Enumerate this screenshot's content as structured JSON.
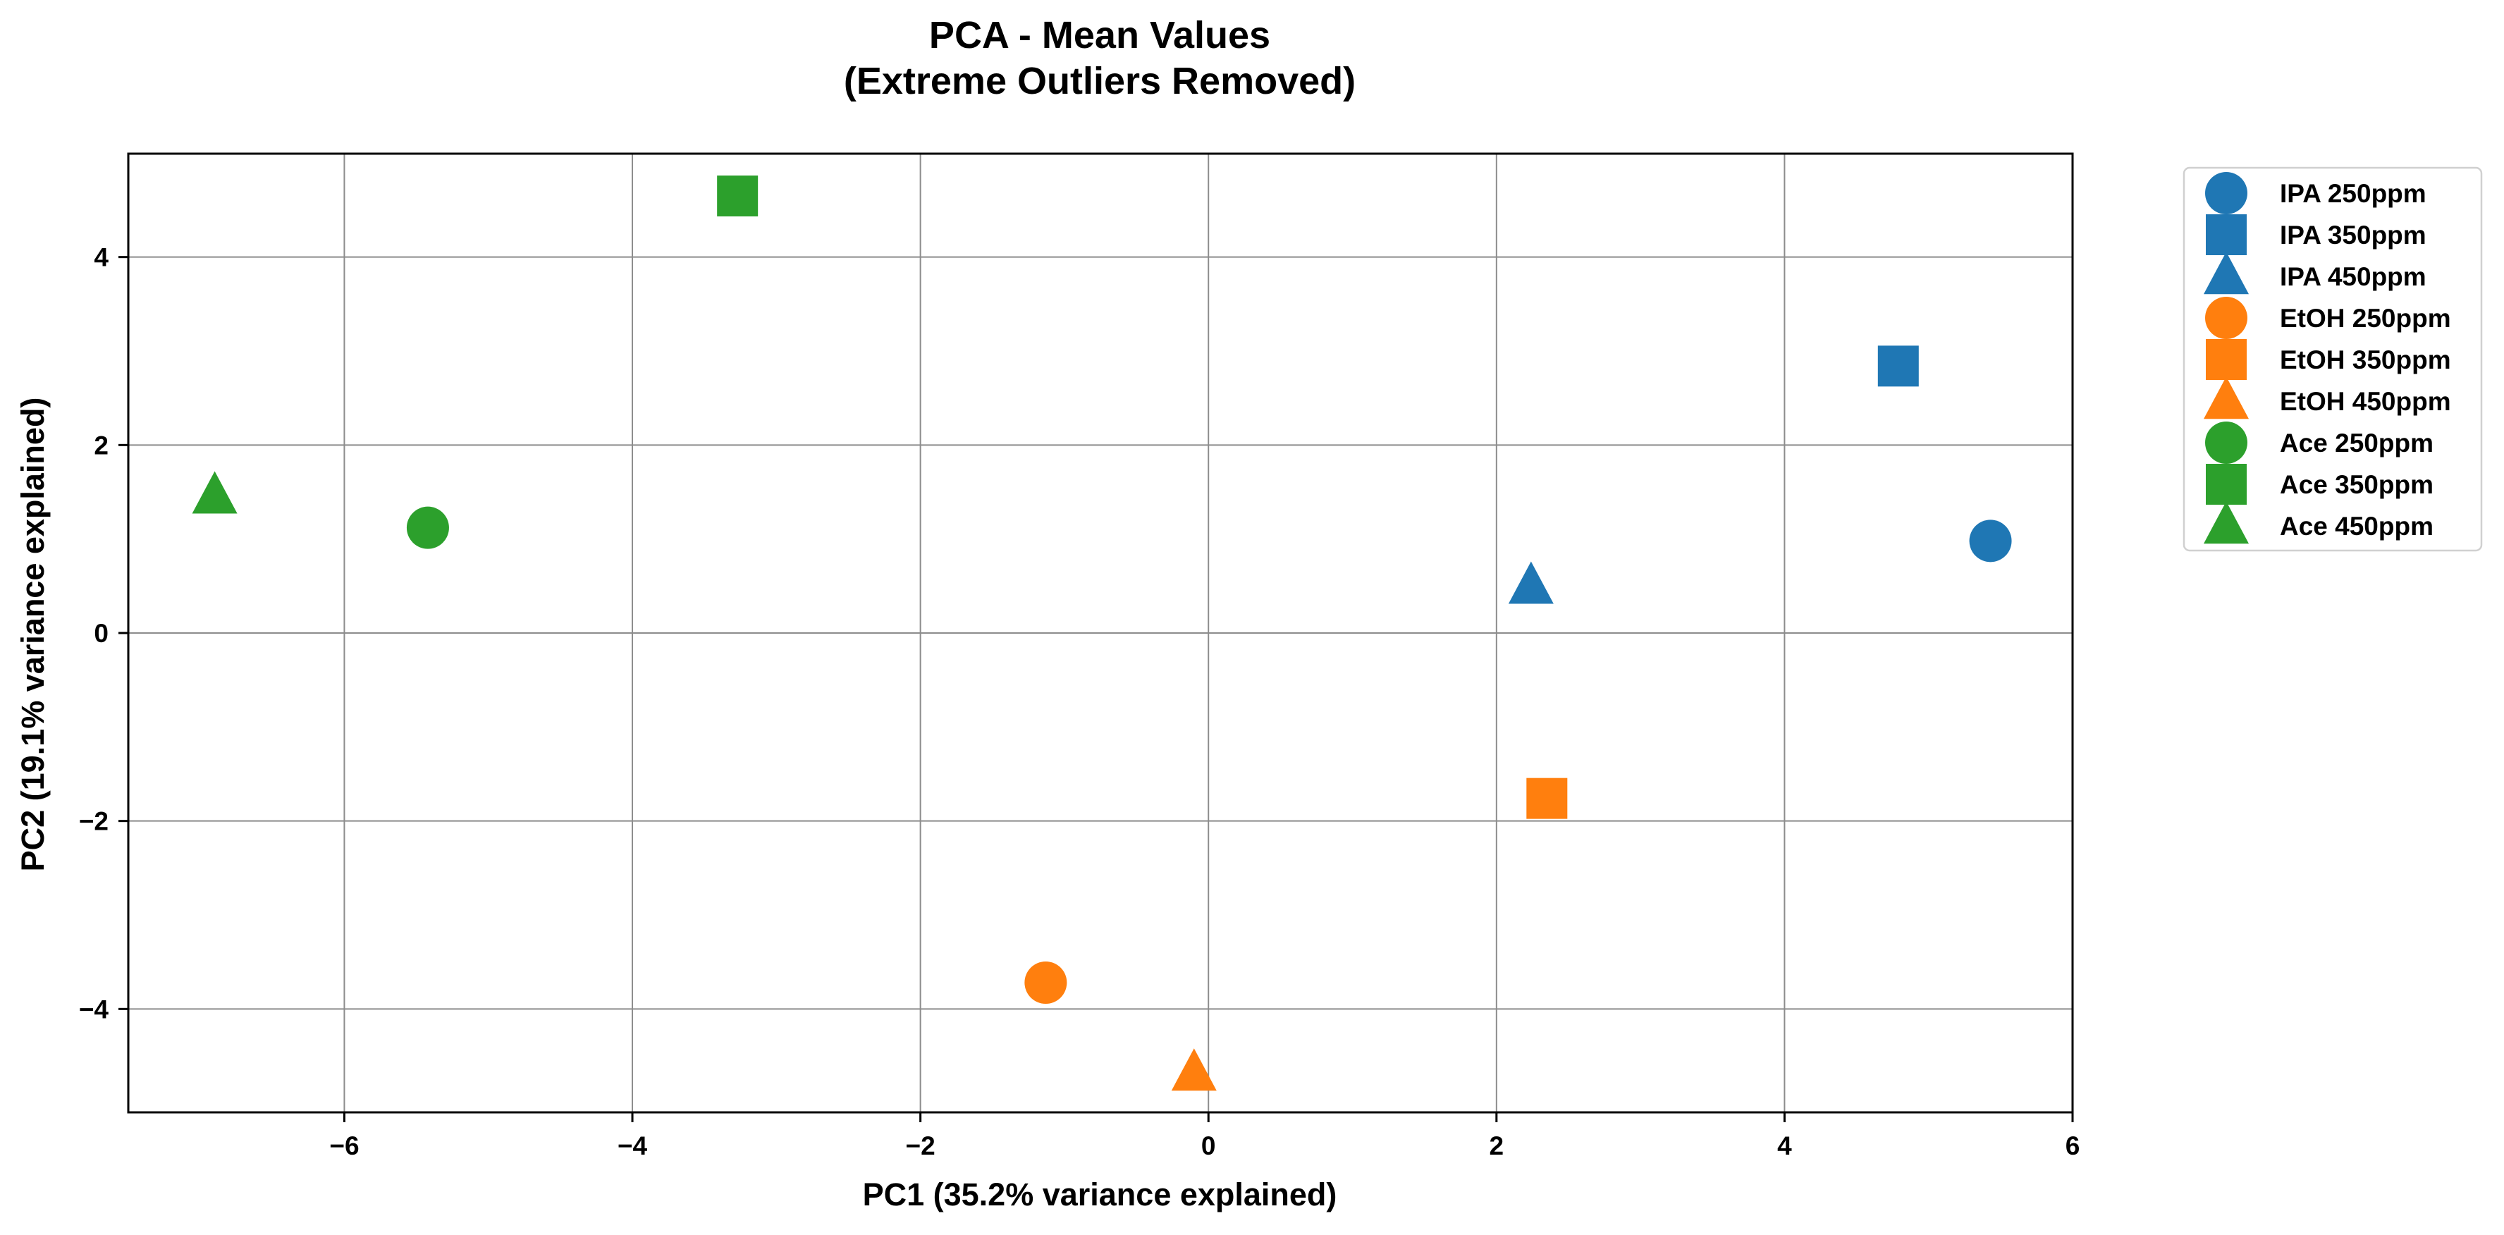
{
  "chart_data": {
    "type": "scatter",
    "title": [
      "PCA - Mean Values",
      "(Extreme Outliers Removed)"
    ],
    "xlabel": "PC1 (35.2% variance explained)",
    "ylabel": "PC2 (19.1% variance explained)",
    "xlim": [
      -7.5,
      6.0
    ],
    "ylim": [
      -5.1,
      5.1
    ],
    "xticks": [
      -6,
      -4,
      -2,
      0,
      2,
      4,
      6
    ],
    "yticks": [
      -4,
      -2,
      0,
      2,
      4
    ],
    "xtick_labels": [
      "−6",
      "−4",
      "−2",
      "0",
      "2",
      "4",
      "6"
    ],
    "ytick_labels": [
      "−4",
      "−2",
      "0",
      "2",
      "4"
    ],
    "grid": true,
    "legend_position": "outside-right-top",
    "series": [
      {
        "name": "IPA 250ppm",
        "color": "#1f77b4",
        "marker": "circle",
        "x": [
          5.43
        ],
        "y": [
          0.98
        ]
      },
      {
        "name": "IPA 350ppm",
        "color": "#1f77b4",
        "marker": "square",
        "x": [
          4.79
        ],
        "y": [
          2.84
        ]
      },
      {
        "name": "IPA 450ppm",
        "color": "#1f77b4",
        "marker": "triangle",
        "x": [
          2.24
        ],
        "y": [
          0.5
        ]
      },
      {
        "name": "EtOH 250ppm",
        "color": "#ff7f0e",
        "marker": "circle",
        "x": [
          -1.13
        ],
        "y": [
          -3.72
        ]
      },
      {
        "name": "EtOH 350ppm",
        "color": "#ff7f0e",
        "marker": "square",
        "x": [
          2.35
        ],
        "y": [
          -1.76
        ]
      },
      {
        "name": "EtOH 450ppm",
        "color": "#ff7f0e",
        "marker": "triangle",
        "x": [
          -0.1
        ],
        "y": [
          -4.68
        ]
      },
      {
        "name": "Ace 250ppm",
        "color": "#2ca02c",
        "marker": "circle",
        "x": [
          -5.42
        ],
        "y": [
          1.12
        ]
      },
      {
        "name": "Ace 350ppm",
        "color": "#2ca02c",
        "marker": "square",
        "x": [
          -3.27
        ],
        "y": [
          4.65
        ]
      },
      {
        "name": "Ace 450ppm",
        "color": "#2ca02c",
        "marker": "triangle",
        "x": [
          -6.9
        ],
        "y": [
          1.46
        ]
      }
    ]
  }
}
